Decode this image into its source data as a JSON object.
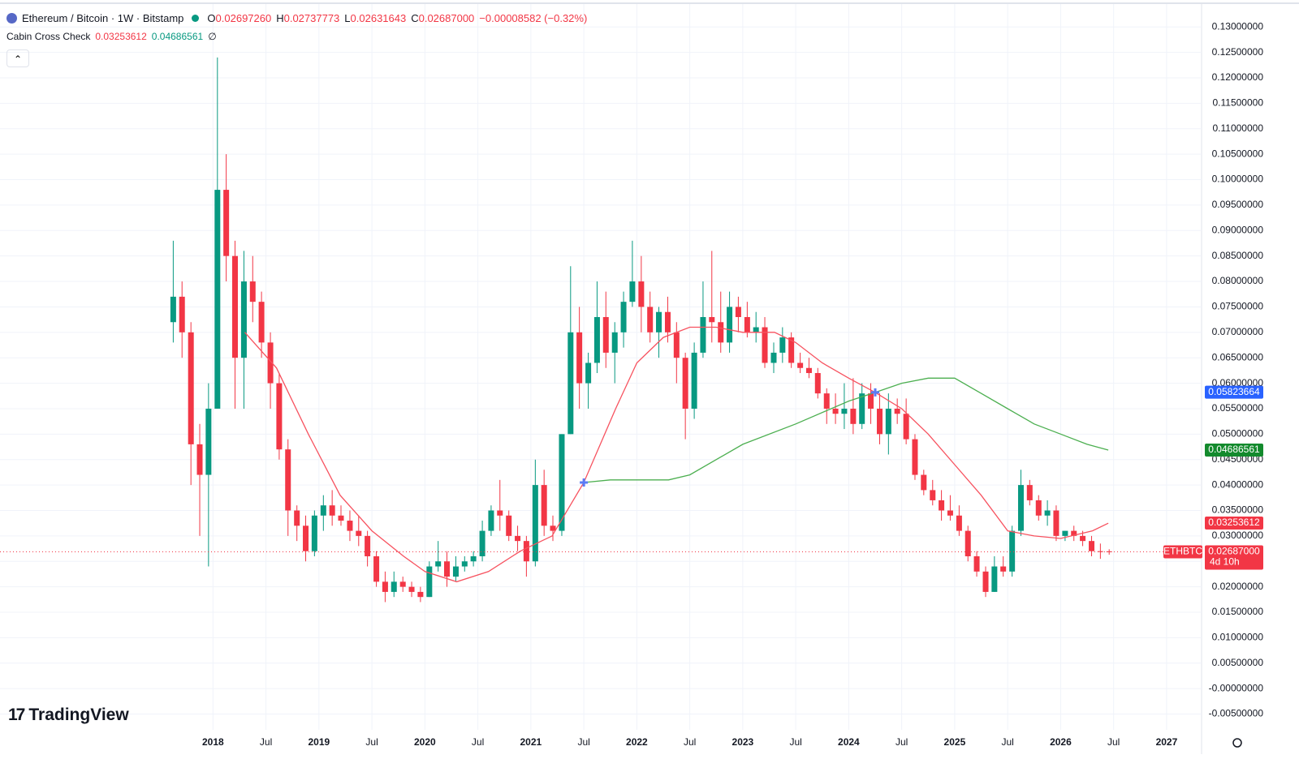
{
  "header": {
    "symbol": "Ethereum / Bitcoin · 1W · Bitstamp",
    "ohlc": [
      {
        "label": "O",
        "value": "0.02697260"
      },
      {
        "label": "H",
        "value": "0.02737773"
      },
      {
        "label": "L",
        "value": "0.02631643"
      },
      {
        "label": "C",
        "value": "0.02687000"
      }
    ],
    "change": "−0.00008582 (−0.32%)",
    "indicator": {
      "name": "Cabin Cross Check",
      "values": [
        "0.03253612",
        "0.04686561"
      ],
      "symbol": "∅"
    }
  },
  "branding": "TradingView",
  "chart_data": {
    "type": "candlestick",
    "x": [
      2017.625,
      2017.708,
      2017.792,
      2017.875,
      2017.958,
      2018.042,
      2018.125,
      2018.208,
      2018.292,
      2018.375,
      2018.458,
      2018.542,
      2018.625,
      2018.708,
      2018.792,
      2018.875,
      2018.958,
      2019.042,
      2019.125,
      2019.208,
      2019.292,
      2019.375,
      2019.458,
      2019.542,
      2019.625,
      2019.708,
      2019.792,
      2019.875,
      2019.958,
      2020.042,
      2020.125,
      2020.208,
      2020.292,
      2020.375,
      2020.458,
      2020.542,
      2020.625,
      2020.708,
      2020.792,
      2020.875,
      2020.958,
      2021.042,
      2021.125,
      2021.208,
      2021.292,
      2021.375,
      2021.458,
      2021.542,
      2021.625,
      2021.708,
      2021.792,
      2021.875,
      2021.958,
      2022.042,
      2022.125,
      2022.208,
      2022.292,
      2022.375,
      2022.458,
      2022.542,
      2022.625,
      2022.708,
      2022.792,
      2022.875,
      2022.958,
      2023.042,
      2023.125,
      2023.208,
      2023.292,
      2023.375,
      2023.458,
      2023.542,
      2023.625,
      2023.708,
      2023.792,
      2023.875,
      2023.958,
      2024.042,
      2024.125,
      2024.208,
      2024.292,
      2024.375,
      2024.458,
      2024.542,
      2024.625,
      2024.708,
      2024.792,
      2024.875,
      2024.958,
      2025.042,
      2025.125,
      2025.208,
      2025.292,
      2025.375,
      2025.458,
      2025.542,
      2025.625,
      2025.708,
      2025.792,
      2025.875,
      2025.958,
      2026.042,
      2026.125,
      2026.208,
      2026.292,
      2026.375,
      2026.458
    ],
    "open": [
      0.072,
      0.077,
      0.07,
      0.048,
      0.042,
      0.055,
      0.098,
      0.085,
      0.065,
      0.08,
      0.076,
      0.068,
      0.06,
      0.047,
      0.035,
      0.032,
      0.027,
      0.034,
      0.036,
      0.034,
      0.033,
      0.031,
      0.03,
      0.026,
      0.021,
      0.019,
      0.021,
      0.02,
      0.019,
      0.018,
      0.024,
      0.025,
      0.022,
      0.024,
      0.025,
      0.026,
      0.031,
      0.035,
      0.034,
      0.03,
      0.029,
      0.025,
      0.04,
      0.032,
      0.031,
      0.05,
      0.07,
      0.06,
      0.064,
      0.073,
      0.066,
      0.07,
      0.076,
      0.08,
      0.075,
      0.07,
      0.074,
      0.07,
      0.065,
      0.055,
      0.066,
      0.073,
      0.072,
      0.068,
      0.075,
      0.073,
      0.07,
      0.071,
      0.064,
      0.066,
      0.069,
      0.064,
      0.063,
      0.062,
      0.058,
      0.055,
      0.054,
      0.055,
      0.052,
      0.058,
      0.055,
      0.05,
      0.055,
      0.054,
      0.049,
      0.042,
      0.039,
      0.037,
      0.035,
      0.034,
      0.031,
      0.026,
      0.023,
      0.019,
      0.024,
      0.023,
      0.031,
      0.04,
      0.037,
      0.034,
      0.035,
      0.03,
      0.031,
      0.03,
      0.029,
      0.027,
      0.02697
    ],
    "high": [
      0.088,
      0.08,
      0.072,
      0.052,
      0.06,
      0.124,
      0.105,
      0.088,
      0.086,
      0.085,
      0.078,
      0.07,
      0.062,
      0.049,
      0.036,
      0.034,
      0.035,
      0.038,
      0.039,
      0.036,
      0.035,
      0.034,
      0.031,
      0.027,
      0.023,
      0.023,
      0.022,
      0.021,
      0.02,
      0.025,
      0.029,
      0.027,
      0.026,
      0.026,
      0.027,
      0.033,
      0.036,
      0.041,
      0.035,
      0.032,
      0.03,
      0.045,
      0.043,
      0.034,
      0.05,
      0.083,
      0.075,
      0.066,
      0.08,
      0.078,
      0.072,
      0.078,
      0.088,
      0.085,
      0.078,
      0.075,
      0.077,
      0.072,
      0.066,
      0.068,
      0.08,
      0.086,
      0.078,
      0.078,
      0.077,
      0.076,
      0.074,
      0.073,
      0.068,
      0.071,
      0.07,
      0.066,
      0.065,
      0.063,
      0.059,
      0.058,
      0.06,
      0.061,
      0.06,
      0.06,
      0.058,
      0.058,
      0.057,
      0.057,
      0.05,
      0.043,
      0.041,
      0.039,
      0.038,
      0.036,
      0.032,
      0.027,
      0.024,
      0.026,
      0.026,
      0.032,
      0.043,
      0.041,
      0.038,
      0.037,
      0.036,
      0.031,
      0.032,
      0.031,
      0.03,
      0.0285,
      0.02738
    ],
    "low": [
      0.068,
      0.065,
      0.04,
      0.03,
      0.024,
      0.055,
      0.08,
      0.055,
      0.055,
      0.072,
      0.065,
      0.055,
      0.045,
      0.03,
      0.029,
      0.025,
      0.026,
      0.031,
      0.032,
      0.032,
      0.029,
      0.028,
      0.024,
      0.02,
      0.017,
      0.018,
      0.019,
      0.018,
      0.017,
      0.018,
      0.023,
      0.02,
      0.021,
      0.023,
      0.024,
      0.025,
      0.03,
      0.031,
      0.029,
      0.027,
      0.022,
      0.024,
      0.03,
      0.029,
      0.03,
      0.05,
      0.055,
      0.055,
      0.062,
      0.063,
      0.06,
      0.067,
      0.075,
      0.07,
      0.068,
      0.065,
      0.068,
      0.06,
      0.049,
      0.053,
      0.065,
      0.068,
      0.066,
      0.066,
      0.07,
      0.069,
      0.068,
      0.063,
      0.062,
      0.064,
      0.063,
      0.062,
      0.061,
      0.057,
      0.052,
      0.052,
      0.051,
      0.05,
      0.051,
      0.052,
      0.048,
      0.046,
      0.052,
      0.048,
      0.041,
      0.038,
      0.036,
      0.033,
      0.033,
      0.03,
      0.025,
      0.022,
      0.018,
      0.019,
      0.022,
      0.022,
      0.03,
      0.036,
      0.033,
      0.032,
      0.029,
      0.029,
      0.029,
      0.028,
      0.026,
      0.0255,
      0.02632
    ],
    "close": [
      0.077,
      0.07,
      0.048,
      0.042,
      0.055,
      0.098,
      0.085,
      0.065,
      0.08,
      0.076,
      0.068,
      0.06,
      0.047,
      0.035,
      0.032,
      0.027,
      0.034,
      0.036,
      0.034,
      0.033,
      0.031,
      0.03,
      0.026,
      0.021,
      0.019,
      0.021,
      0.02,
      0.019,
      0.018,
      0.024,
      0.025,
      0.022,
      0.024,
      0.025,
      0.026,
      0.031,
      0.035,
      0.034,
      0.03,
      0.029,
      0.025,
      0.04,
      0.032,
      0.031,
      0.05,
      0.07,
      0.06,
      0.064,
      0.073,
      0.066,
      0.07,
      0.076,
      0.08,
      0.075,
      0.07,
      0.074,
      0.07,
      0.065,
      0.055,
      0.066,
      0.073,
      0.072,
      0.068,
      0.075,
      0.073,
      0.07,
      0.071,
      0.064,
      0.066,
      0.069,
      0.064,
      0.063,
      0.062,
      0.058,
      0.055,
      0.054,
      0.055,
      0.052,
      0.058,
      0.055,
      0.05,
      0.055,
      0.054,
      0.049,
      0.042,
      0.039,
      0.037,
      0.035,
      0.034,
      0.031,
      0.026,
      0.023,
      0.019,
      0.024,
      0.023,
      0.031,
      0.04,
      0.037,
      0.034,
      0.035,
      0.03,
      0.031,
      0.03,
      0.029,
      0.027,
      0.02697,
      0.02687
    ],
    "up_color": "#089981",
    "down_color": "#f23645",
    "lines": [
      {
        "color": "#f7525f",
        "x": [
          2018.3,
          2018.6,
          2018.9,
          2019.2,
          2019.5,
          2019.8,
          2020.0,
          2020.3,
          2020.6,
          2020.9,
          2021.2,
          2021.5,
          2021.8,
          2022.0,
          2022.25,
          2022.5,
          2022.75,
          2023.0,
          2023.3,
          2023.5,
          2023.75,
          2024.0,
          2024.25,
          2024.5,
          2024.75,
          2025.0,
          2025.25,
          2025.5,
          2025.75,
          2026.0,
          2026.3,
          2026.45
        ],
        "values": [
          0.07,
          0.063,
          0.05,
          0.038,
          0.031,
          0.026,
          0.023,
          0.021,
          0.023,
          0.027,
          0.03,
          0.0405,
          0.055,
          0.064,
          0.069,
          0.071,
          0.071,
          0.07,
          0.07,
          0.068,
          0.064,
          0.061,
          0.0582,
          0.055,
          0.05,
          0.044,
          0.038,
          0.031,
          0.03,
          0.0295,
          0.031,
          0.0325
        ]
      },
      {
        "color": "#4caf50",
        "x": [
          2021.5,
          2021.75,
          2022.0,
          2022.3,
          2022.5,
          2022.75,
          2023.0,
          2023.5,
          2024.0,
          2024.25,
          2024.5,
          2024.75,
          2025.0,
          2025.25,
          2025.5,
          2025.75,
          2026.0,
          2026.25,
          2026.45
        ],
        "values": [
          0.0405,
          0.041,
          0.041,
          0.041,
          0.042,
          0.045,
          0.048,
          0.052,
          0.0565,
          0.0582,
          0.06,
          0.061,
          0.061,
          0.058,
          0.055,
          0.052,
          0.05,
          0.048,
          0.04687
        ]
      }
    ],
    "crosses": {
      "color": "#5b7cf5",
      "x": [
        2021.5,
        2024.25
      ],
      "y": [
        0.0405,
        0.0582
      ]
    },
    "xlim": [
      2015.99,
      2027.33
    ],
    "ylim": [
      -0.0081,
      0.1345
    ],
    "xticks": [
      2018,
      {
        "value": 2018.5,
        "label": "Jul"
      },
      2019,
      {
        "value": 2019.5,
        "label": "Jul"
      },
      2020,
      {
        "value": 2020.5,
        "label": "Jul"
      },
      2021,
      {
        "value": 2021.5,
        "label": "Jul"
      },
      2022,
      {
        "value": 2022.5,
        "label": "Jul"
      },
      2023,
      {
        "value": 2023.5,
        "label": "Jul"
      },
      2024,
      {
        "value": 2024.5,
        "label": "Jul"
      },
      2025,
      {
        "value": 2025.5,
        "label": "Jul"
      },
      2026,
      {
        "value": 2026.5,
        "label": "Jul"
      },
      2027
    ],
    "yticks": [
      {
        "value": -0.005,
        "label": "-0.00500000"
      },
      {
        "value": 0,
        "label": "-0.00000000"
      },
      {
        "value": 0.005,
        "label": "0.00500000"
      },
      {
        "value": 0.01,
        "label": "0.01000000"
      },
      {
        "value": 0.015,
        "label": "0.01500000"
      },
      {
        "value": 0.02,
        "label": "0.02000000"
      },
      {
        "value": 0.025,
        "label": "0.02500000"
      },
      {
        "value": 0.03,
        "label": "0.03000000"
      },
      {
        "value": 0.035,
        "label": "0.03500000"
      },
      {
        "value": 0.04,
        "label": "0.04000000"
      },
      {
        "value": 0.045,
        "label": "0.04500000"
      },
      {
        "value": 0.05,
        "label": "0.05000000"
      },
      {
        "value": 0.055,
        "label": "0.05500000"
      },
      {
        "value": 0.06,
        "label": "0.06000000"
      },
      {
        "value": 0.065,
        "label": "0.06500000"
      },
      {
        "value": 0.07,
        "label": "0.07000000"
      },
      {
        "value": 0.075,
        "label": "0.07500000"
      },
      {
        "value": 0.08,
        "label": "0.08000000"
      },
      {
        "value": 0.085,
        "label": "0.08500000"
      },
      {
        "value": 0.09,
        "label": "0.09000000"
      },
      {
        "value": 0.095,
        "label": "0.09500000"
      },
      {
        "value": 0.1,
        "label": "0.10000000"
      },
      {
        "value": 0.105,
        "label": "0.10500000"
      },
      {
        "value": 0.11,
        "label": "0.11000000"
      },
      {
        "value": 0.115,
        "label": "0.11500000"
      },
      {
        "value": 0.12,
        "label": "0.12000000"
      },
      {
        "value": 0.125,
        "label": "0.12500000"
      },
      {
        "value": 0.13,
        "label": "0.13000000"
      }
    ],
    "grid": true,
    "price_labels": [
      {
        "value": 0.05823664,
        "label": "0.05823664",
        "color": "#2962ff"
      },
      {
        "value": 0.04686561,
        "label": "0.04686561",
        "color": "#138a2d"
      },
      {
        "value": 0.03253612,
        "label": "0.03253612",
        "color": "#f23645"
      }
    ],
    "last_price": {
      "symbol": "ETHBTC",
      "value": 0.02687,
      "label": "0.02687000",
      "countdown": "4d 10h",
      "color": "#f23645"
    }
  }
}
